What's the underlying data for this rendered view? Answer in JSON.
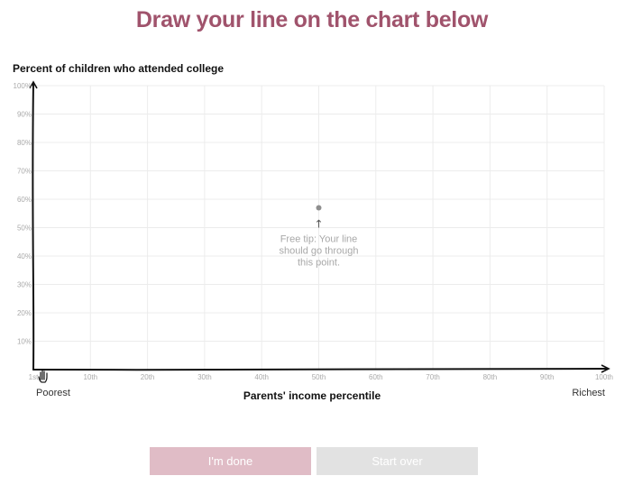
{
  "header": {
    "title": "Draw your line on the chart below"
  },
  "chart_data": {
    "type": "line",
    "title": "",
    "ylabel": "Percent of children who attended college",
    "xlabel": "Parents' income percentile",
    "x_end_labels": {
      "left": "Poorest",
      "right": "Richest"
    },
    "xlim": [
      0,
      100
    ],
    "ylim": [
      0,
      100
    ],
    "x_ticks": [
      {
        "value": 0,
        "label": "1st"
      },
      {
        "value": 10,
        "label": "10th"
      },
      {
        "value": 20,
        "label": "20th"
      },
      {
        "value": 30,
        "label": "30th"
      },
      {
        "value": 40,
        "label": "40th"
      },
      {
        "value": 50,
        "label": "50th"
      },
      {
        "value": 60,
        "label": "60th"
      },
      {
        "value": 70,
        "label": "70th"
      },
      {
        "value": 80,
        "label": "80th"
      },
      {
        "value": 90,
        "label": "90th"
      },
      {
        "value": 100,
        "label": "100th"
      }
    ],
    "y_ticks": [
      {
        "value": 10,
        "label": "10%"
      },
      {
        "value": 20,
        "label": "20%"
      },
      {
        "value": 30,
        "label": "30%"
      },
      {
        "value": 40,
        "label": "40%"
      },
      {
        "value": 50,
        "label": "50%"
      },
      {
        "value": 60,
        "label": "60%"
      },
      {
        "value": 70,
        "label": "70%"
      },
      {
        "value": 80,
        "label": "80%"
      },
      {
        "value": 90,
        "label": "90%"
      },
      {
        "value": 100,
        "label": "100%"
      }
    ],
    "grid": true,
    "series": [],
    "hint_point": {
      "x": 50,
      "y": 57
    },
    "annotation": {
      "arrow": "↑",
      "lines": [
        "Free tip: Your line",
        "should go through",
        "this point."
      ]
    }
  },
  "buttons": {
    "done_label": "I'm done",
    "start_over_label": "Start over"
  },
  "colors": {
    "accent": "#a0536c",
    "done_button": "#e0bcc6",
    "start_over_button": "#e2e2e2"
  },
  "icons": {
    "cursor": "hand-pointer-icon"
  }
}
